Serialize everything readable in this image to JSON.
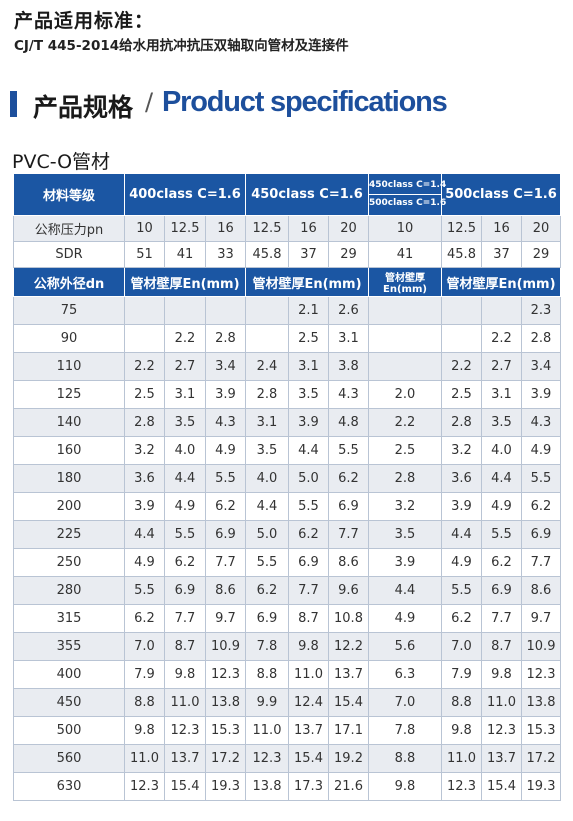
{
  "standard": {
    "title": "产品适用标准：",
    "text": "CJ/T 445-2014给水用抗冲抗压双轴取向管材及连接件"
  },
  "section": {
    "title_cn": "产品规格",
    "separator": "/",
    "title_en": "Product specifications"
  },
  "pipe_title": "PVC-O管材",
  "table": {
    "header": {
      "material_grade": "材料等级",
      "class400": "400class  C=1.6",
      "class450": "450class  C=1.6",
      "class450_small": "450class C=1.4",
      "class500_small": "500class C=1.6",
      "class500": "500class  C=1.6"
    },
    "pn_row": {
      "label": "公称压力pn",
      "values": [
        "10",
        "12.5",
        "16",
        "12.5",
        "16",
        "20",
        "10",
        "12.5",
        "16",
        "20"
      ]
    },
    "sdr_row": {
      "label": "SDR",
      "values": [
        "51",
        "41",
        "33",
        "45.8",
        "37",
        "29",
        "41",
        "45.8",
        "37",
        "29"
      ]
    },
    "sub_header": {
      "dn_label": "公称外径dn",
      "wall1": "管材壁厚En(mm)",
      "wall2": "管材壁厚En(mm)",
      "wall3": "管材壁厚En(mm)",
      "wall4": "管材壁厚En(mm)"
    },
    "rows": [
      {
        "dn": "75",
        "v": [
          "",
          "",
          "",
          "",
          "2.1",
          "2.6",
          "",
          "",
          "",
          "2.3"
        ]
      },
      {
        "dn": "90",
        "v": [
          "",
          "2.2",
          "2.8",
          "",
          "2.5",
          "3.1",
          "",
          "",
          "2.2",
          "2.8"
        ]
      },
      {
        "dn": "110",
        "v": [
          "2.2",
          "2.7",
          "3.4",
          "2.4",
          "3.1",
          "3.8",
          "",
          "2.2",
          "2.7",
          "3.4"
        ]
      },
      {
        "dn": "125",
        "v": [
          "2.5",
          "3.1",
          "3.9",
          "2.8",
          "3.5",
          "4.3",
          "2.0",
          "2.5",
          "3.1",
          "3.9"
        ]
      },
      {
        "dn": "140",
        "v": [
          "2.8",
          "3.5",
          "4.3",
          "3.1",
          "3.9",
          "4.8",
          "2.2",
          "2.8",
          "3.5",
          "4.3"
        ]
      },
      {
        "dn": "160",
        "v": [
          "3.2",
          "4.0",
          "4.9",
          "3.5",
          "4.4",
          "5.5",
          "2.5",
          "3.2",
          "4.0",
          "4.9"
        ]
      },
      {
        "dn": "180",
        "v": [
          "3.6",
          "4.4",
          "5.5",
          "4.0",
          "5.0",
          "6.2",
          "2.8",
          "3.6",
          "4.4",
          "5.5"
        ]
      },
      {
        "dn": "200",
        "v": [
          "3.9",
          "4.9",
          "6.2",
          "4.4",
          "5.5",
          "6.9",
          "3.2",
          "3.9",
          "4.9",
          "6.2"
        ]
      },
      {
        "dn": "225",
        "v": [
          "4.4",
          "5.5",
          "6.9",
          "5.0",
          "6.2",
          "7.7",
          "3.5",
          "4.4",
          "5.5",
          "6.9"
        ]
      },
      {
        "dn": "250",
        "v": [
          "4.9",
          "6.2",
          "7.7",
          "5.5",
          "6.9",
          "8.6",
          "3.9",
          "4.9",
          "6.2",
          "7.7"
        ]
      },
      {
        "dn": "280",
        "v": [
          "5.5",
          "6.9",
          "8.6",
          "6.2",
          "7.7",
          "9.6",
          "4.4",
          "5.5",
          "6.9",
          "8.6"
        ]
      },
      {
        "dn": "315",
        "v": [
          "6.2",
          "7.7",
          "9.7",
          "6.9",
          "8.7",
          "10.8",
          "4.9",
          "6.2",
          "7.7",
          "9.7"
        ]
      },
      {
        "dn": "355",
        "v": [
          "7.0",
          "8.7",
          "10.9",
          "7.8",
          "9.8",
          "12.2",
          "5.6",
          "7.0",
          "8.7",
          "10.9"
        ]
      },
      {
        "dn": "400",
        "v": [
          "7.9",
          "9.8",
          "12.3",
          "8.8",
          "11.0",
          "13.7",
          "6.3",
          "7.9",
          "9.8",
          "12.3"
        ]
      },
      {
        "dn": "450",
        "v": [
          "8.8",
          "11.0",
          "13.8",
          "9.9",
          "12.4",
          "15.4",
          "7.0",
          "8.8",
          "11.0",
          "13.8"
        ]
      },
      {
        "dn": "500",
        "v": [
          "9.8",
          "12.3",
          "15.3",
          "11.0",
          "13.7",
          "17.1",
          "7.8",
          "9.8",
          "12.3",
          "15.3"
        ]
      },
      {
        "dn": "560",
        "v": [
          "11.0",
          "13.7",
          "17.2",
          "12.3",
          "15.4",
          "19.2",
          "8.8",
          "11.0",
          "13.7",
          "17.2"
        ]
      },
      {
        "dn": "630",
        "v": [
          "12.3",
          "15.4",
          "19.3",
          "13.8",
          "17.3",
          "21.6",
          "9.8",
          "12.3",
          "15.4",
          "19.3"
        ]
      }
    ]
  },
  "colors": {
    "header_blue": "#1b56a3",
    "title_blue": "#1d4f9c",
    "row_gray": "#e9ecf1"
  }
}
